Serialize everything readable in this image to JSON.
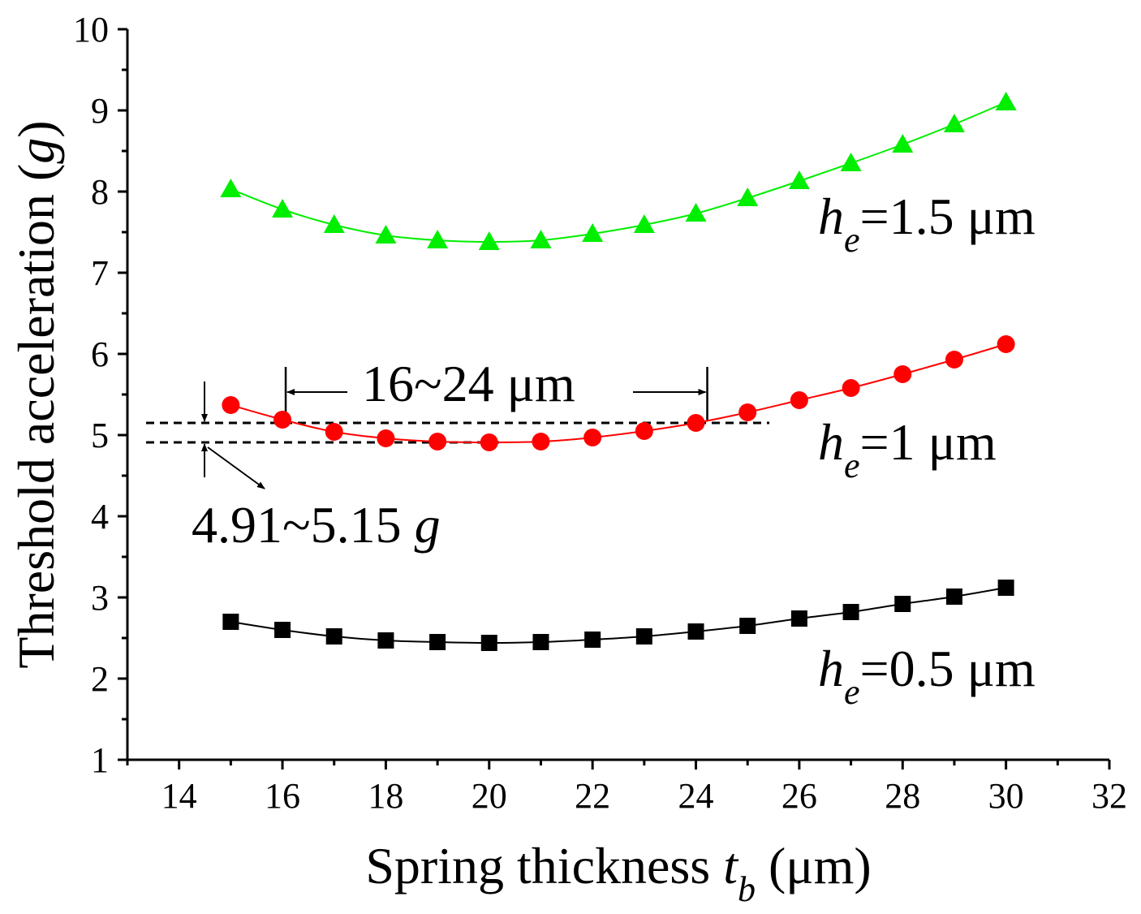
{
  "chart_data": {
    "type": "line",
    "xlabel": "Spring thickness",
    "xlabel_var": "t",
    "xlabel_sub": "b",
    "xlabel_unit": "(μm)",
    "ylabel": "Threshold acceleration (",
    "ylabel_var": "g",
    "ylabel_end": ")",
    "xlim": [
      13,
      32
    ],
    "ylim": [
      1,
      10
    ],
    "xticks": [
      14,
      16,
      18,
      20,
      22,
      24,
      26,
      28,
      30,
      32
    ],
    "yticks": [
      1,
      2,
      3,
      4,
      5,
      6,
      7,
      8,
      9,
      10
    ],
    "x": [
      15,
      16,
      17,
      18,
      19,
      20,
      21,
      22,
      23,
      24,
      25,
      26,
      27,
      28,
      29,
      30
    ],
    "series": [
      {
        "name": "he=0.5 μm",
        "marker": "square",
        "color": "#000000",
        "values": [
          2.7,
          2.6,
          2.52,
          2.47,
          2.45,
          2.44,
          2.45,
          2.48,
          2.52,
          2.58,
          2.65,
          2.74,
          2.82,
          2.92,
          3.01,
          3.12
        ]
      },
      {
        "name": "he=1 μm",
        "marker": "circle",
        "color": "#ff0000",
        "values": [
          5.37,
          5.19,
          5.04,
          4.96,
          4.92,
          4.91,
          4.92,
          4.97,
          5.05,
          5.15,
          5.28,
          5.43,
          5.58,
          5.75,
          5.93,
          6.12
        ]
      },
      {
        "name": "he=1.5 μm",
        "marker": "triangle",
        "color": "#00ee00",
        "values": [
          8.03,
          7.78,
          7.59,
          7.46,
          7.4,
          7.38,
          7.4,
          7.48,
          7.59,
          7.73,
          7.92,
          8.13,
          8.35,
          8.58,
          8.83,
          9.1
        ]
      }
    ],
    "series_labels": [
      {
        "var": "h",
        "sub": "e",
        "text": "=0.5 μm"
      },
      {
        "var": "h",
        "sub": "e",
        "text": "=1 μm"
      },
      {
        "var": "h",
        "sub": "e",
        "text": "=1.5 μm"
      }
    ],
    "annotations": {
      "range_x": {
        "text": "16~24 μm",
        "from": 16,
        "to": 24
      },
      "range_y": {
        "text": "4.91~5.15 ",
        "var": "g",
        "from": 4.91,
        "to": 5.15
      }
    }
  }
}
